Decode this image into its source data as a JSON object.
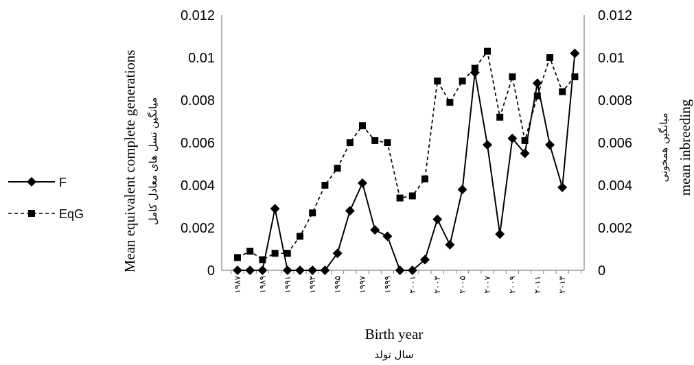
{
  "chart_data": {
    "type": "line",
    "xlabel": "Birth year",
    "xlabel_fa": "سال تولد",
    "ylabel": "Mean equivalent complete generations",
    "ylabel_fa": "میانگین نسل های معادل کامل",
    "y2label": "mean inbreeding",
    "y2label_fa": "میانگین همخونی",
    "ylim": [
      0,
      0.012
    ],
    "yticks": [
      "0",
      "0.002",
      "0.004",
      "0.006",
      "0.008",
      "0.01",
      "0.012"
    ],
    "y2ticks": [
      "0",
      "0.002",
      "0.004",
      "0.006",
      "0.008",
      "0.01",
      "0.012"
    ],
    "x_tick_labels": [
      "۱۹۸۷",
      "۱۹۸۹",
      "۱۹۹۱",
      "۱۹۹۳",
      "۱۹۹۵",
      "۱۹۹۷",
      "۱۹۹۹",
      "۲۰۰۱",
      "۲۰۰۳",
      "۲۰۰۵",
      "۲۰۰۷",
      "۲۰۰۹",
      "۲۰۱۱",
      "۲۰۱۳"
    ],
    "x": [
      1987,
      1988,
      1989,
      1990,
      1991,
      1992,
      1993,
      1994,
      1995,
      1996,
      1997,
      1998,
      1999,
      2000,
      2001,
      2002,
      2003,
      2004,
      2005,
      2006,
      2007,
      2008,
      2009,
      2010,
      2011,
      2012,
      2013,
      2014
    ],
    "legend_position": "left",
    "grid": false,
    "series": [
      {
        "name": "F",
        "style": "solid",
        "marker": "diamond",
        "color": "#000000",
        "values": [
          0,
          0,
          0,
          0.0029,
          0,
          0,
          0,
          0,
          0.0008,
          0.0028,
          0.0041,
          0.0019,
          0.0016,
          0,
          0,
          0.0005,
          0.0024,
          0.0012,
          0.0038,
          0.0093,
          0.0059,
          0.0017,
          0.0062,
          0.0055,
          0.0088,
          0.0059,
          0.0039,
          0.0102
        ]
      },
      {
        "name": "EqG",
        "style": "dashed",
        "marker": "square",
        "color": "#000000",
        "values": [
          0.0006,
          0.0009,
          0.0005,
          0.0008,
          0.0008,
          0.0016,
          0.0027,
          0.004,
          0.0048,
          0.006,
          0.0068,
          0.0061,
          0.006,
          0.0034,
          0.0035,
          0.0043,
          0.0089,
          0.0079,
          0.0089,
          0.0095,
          0.0103,
          0.0072,
          0.0091,
          0.0061,
          0.0082,
          0.01,
          0.0084,
          0.0091
        ]
      }
    ]
  }
}
